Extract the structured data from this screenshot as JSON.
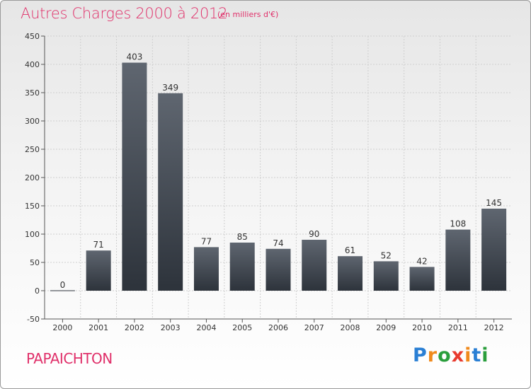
{
  "header": {
    "title": "Autres Charges 2000 à 2012",
    "subtitle": "(en milliers d'€)"
  },
  "footer": {
    "commune": "PAPAICHTON",
    "logo_letters": [
      "P",
      "r",
      "o",
      "x",
      "i",
      "t",
      "i"
    ],
    "logo_colors": [
      "#2a7fd4",
      "#f08a1c",
      "#2a9e3c",
      "#e83a2e",
      "#f08a1c",
      "#2a7fd4",
      "#2a9e3c"
    ]
  },
  "chart_data": {
    "type": "bar",
    "categories": [
      "2000",
      "2001",
      "2002",
      "2003",
      "2004",
      "2005",
      "2006",
      "2007",
      "2008",
      "2009",
      "2010",
      "2011",
      "2012"
    ],
    "values": [
      0,
      71,
      403,
      349,
      77,
      85,
      74,
      90,
      61,
      52,
      42,
      108,
      145
    ],
    "data_labels": [
      "0",
      "71",
      "403",
      "349",
      "77",
      "85",
      "74",
      "90",
      "61",
      "52",
      "42",
      "108",
      "145"
    ],
    "yticks": [
      -50,
      0,
      50,
      100,
      150,
      200,
      250,
      300,
      350,
      400,
      450
    ],
    "ytick_labels": [
      "-50",
      "0",
      "50",
      "100",
      "150",
      "200",
      "250",
      "300",
      "350",
      "400",
      "450"
    ],
    "ylim": [
      -50,
      450
    ],
    "grid": true,
    "bar_color_top": "#5f6670",
    "bar_color_bottom": "#2d333b"
  }
}
